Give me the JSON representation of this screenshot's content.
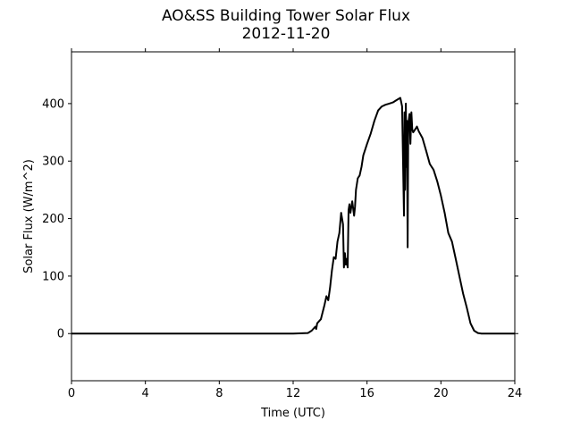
{
  "chart_data": {
    "type": "line",
    "title": "AO&SS Building Tower Solar Flux",
    "subtitle": "2012-11-20",
    "xlabel": "Time (UTC)",
    "ylabel": "Solar Flux (W/m^2)",
    "xlim": [
      0,
      24
    ],
    "ylim": [
      -82,
      490
    ],
    "xticks": [
      0,
      4,
      8,
      12,
      16,
      20,
      24
    ],
    "yticks": [
      0,
      100,
      200,
      300,
      400
    ],
    "grid": false,
    "line_color": "#000000",
    "series": [
      {
        "x": [
          0,
          4,
          8,
          12,
          12.8,
          13.0,
          13.2,
          13.25,
          13.3,
          13.5,
          13.7,
          13.8,
          13.9,
          14.0,
          14.1,
          14.2,
          14.3,
          14.4,
          14.5,
          14.6,
          14.7,
          14.75,
          14.8,
          14.85,
          14.9,
          14.95,
          15.0,
          15.05,
          15.1,
          15.2,
          15.3,
          15.35,
          15.4,
          15.5,
          15.6,
          15.7,
          15.8,
          16.0,
          16.2,
          16.4,
          16.6,
          16.8,
          17.0,
          17.2,
          17.4,
          17.6,
          17.8,
          17.9,
          18.0,
          18.03,
          18.06,
          18.1,
          18.13,
          18.16,
          18.2,
          18.23,
          18.3,
          18.35,
          18.4,
          18.45,
          18.5,
          18.6,
          18.7,
          18.8,
          19.0,
          19.2,
          19.4,
          19.6,
          19.8,
          20.0,
          20.2,
          20.4,
          20.6,
          20.7,
          20.8,
          21.0,
          21.2,
          21.4,
          21.6,
          21.8,
          22.0,
          22.2,
          22.4,
          22.6,
          22.8,
          23.0,
          24
        ],
        "y": [
          0,
          0,
          0,
          0,
          1,
          5,
          12,
          8,
          18,
          25,
          50,
          65,
          58,
          80,
          110,
          133,
          130,
          160,
          175,
          210,
          190,
          115,
          140,
          120,
          130,
          115,
          215,
          225,
          210,
          230,
          205,
          220,
          250,
          270,
          275,
          290,
          310,
          330,
          348,
          370,
          388,
          395,
          398,
          400,
          402,
          406,
          410,
          395,
          205,
          385,
          250,
          400,
          290,
          370,
          150,
          365,
          382,
          330,
          385,
          355,
          350,
          355,
          360,
          352,
          340,
          318,
          295,
          285,
          265,
          240,
          210,
          175,
          160,
          145,
          130,
          100,
          70,
          45,
          18,
          5,
          1,
          0,
          0,
          0,
          0,
          0,
          0
        ]
      }
    ]
  }
}
